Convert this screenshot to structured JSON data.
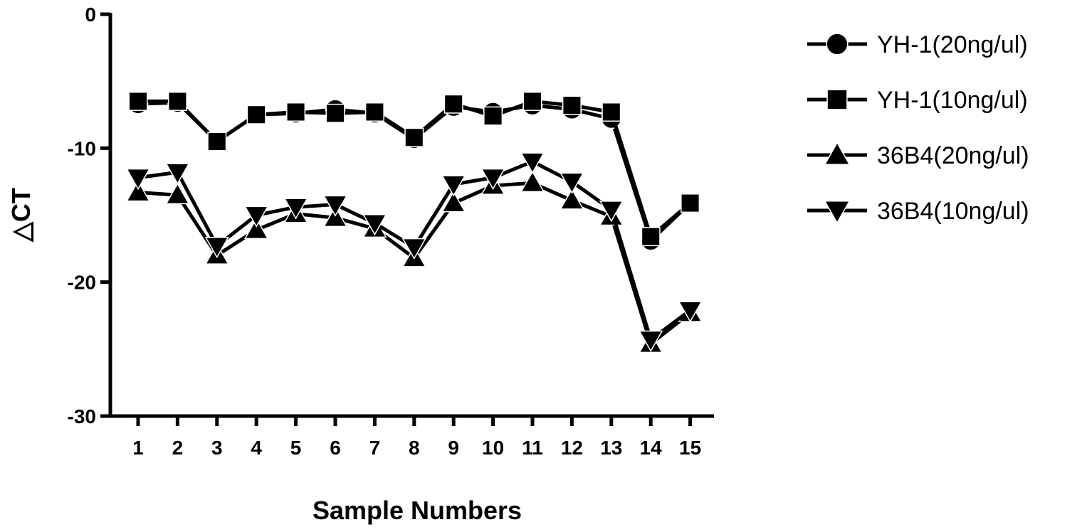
{
  "chart_data": {
    "type": "line",
    "title": "",
    "xlabel": "Sample Numbers",
    "ylabel": "△CT",
    "ylim": [
      -30,
      0
    ],
    "yticks": [
      0,
      -10,
      -20,
      -30
    ],
    "x": [
      1,
      2,
      3,
      4,
      5,
      6,
      7,
      8,
      9,
      10,
      11,
      12,
      13,
      14,
      15
    ],
    "legend_position": "right",
    "grid": false,
    "series": [
      {
        "name": "YH-1(20ng/ul)",
        "marker": "circle",
        "values": [
          -6.7,
          -6.6,
          -9.5,
          -7.5,
          -7.4,
          -7.1,
          -7.4,
          -9.3,
          -6.9,
          -7.3,
          -6.8,
          -7.1,
          -7.8,
          -16.9,
          -14.1
        ]
      },
      {
        "name": "YH-1(10ng/ul)",
        "marker": "square",
        "values": [
          -6.5,
          -6.5,
          -9.5,
          -7.5,
          -7.3,
          -7.4,
          -7.3,
          -9.2,
          -6.7,
          -7.6,
          -6.5,
          -6.8,
          -7.3,
          -16.6,
          -14.1
        ]
      },
      {
        "name": "36B4(20ng/ul)",
        "marker": "triangle-up",
        "values": [
          -13.3,
          -13.5,
          -18.0,
          -16.1,
          -14.9,
          -15.2,
          -16.0,
          -18.2,
          -14.1,
          -12.8,
          -12.6,
          -13.9,
          -15.1,
          -24.6,
          -22.3
        ]
      },
      {
        "name": "36B4(10ng/ul)",
        "marker": "triangle-down",
        "values": [
          -12.2,
          -11.8,
          -17.3,
          -15.0,
          -14.4,
          -14.2,
          -15.6,
          -17.4,
          -12.7,
          -12.2,
          -11.0,
          -12.5,
          -14.6,
          -24.3,
          -22.1
        ]
      }
    ]
  }
}
